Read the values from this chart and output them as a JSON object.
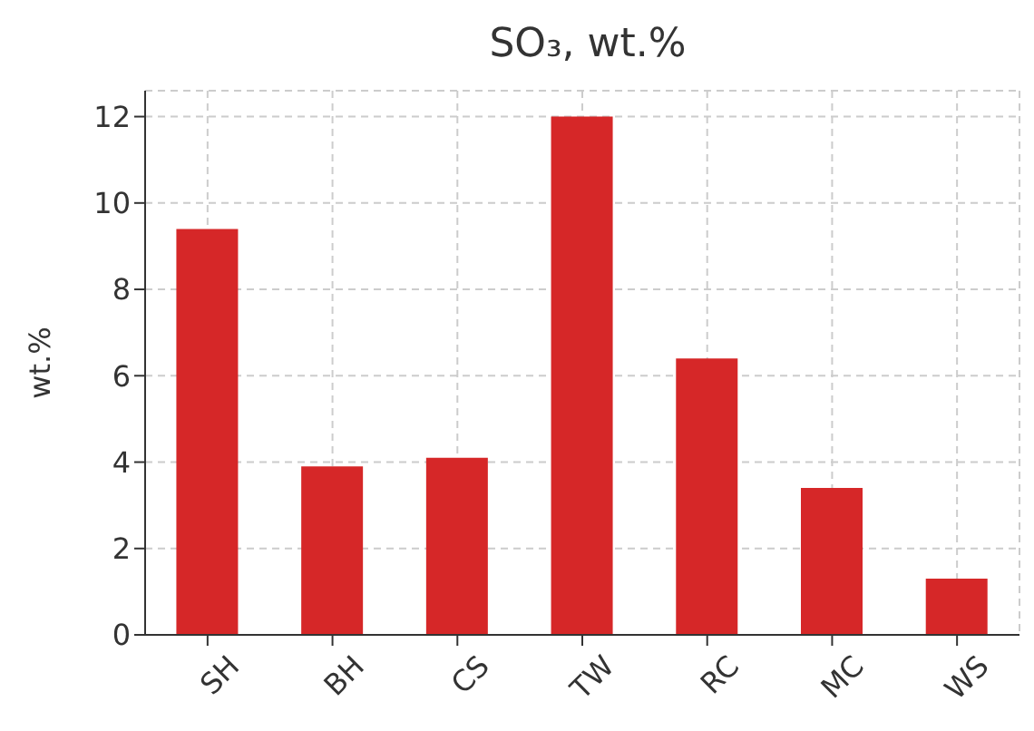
{
  "chart_data": {
    "type": "bar",
    "title": "SO₃, wt.%",
    "ylabel": "wt.%",
    "categories": [
      "SH",
      "BH",
      "CS",
      "TW",
      "RC",
      "MC",
      "WS"
    ],
    "values": [
      9.4,
      3.9,
      4.1,
      12.0,
      6.4,
      3.4,
      1.3
    ],
    "color": "#d62728",
    "ylim": [
      0,
      12.6
    ],
    "yticks": [
      0,
      2,
      4,
      6,
      8,
      10,
      12
    ],
    "grid": true
  }
}
